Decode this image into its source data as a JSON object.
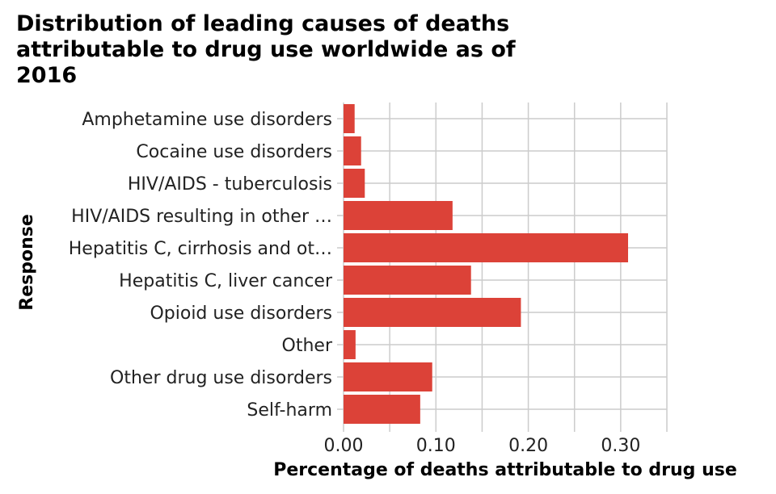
{
  "chart_data": {
    "type": "bar",
    "orientation": "horizontal",
    "title": "Distribution of leading causes of deaths attributable to drug use worldwide as of 2016",
    "xlabel": "Percentage of deaths attributable to drug use",
    "ylabel": "Response",
    "categories": [
      "Amphetamine use disorders",
      "Cocaine use disorders",
      "HIV/AIDS - tuberculosis",
      "HIV/AIDS resulting in other …",
      "Hepatitis C, cirrhosis and ot…",
      "Hepatitis C, liver cancer",
      "Opioid use disorders",
      "Other",
      "Other drug use disorders",
      "Self-harm"
    ],
    "values": [
      0.012,
      0.019,
      0.023,
      0.118,
      0.308,
      0.138,
      0.192,
      0.013,
      0.096,
      0.083
    ],
    "xlim": [
      0,
      0.35
    ],
    "xticks": [
      0.0,
      0.1,
      0.2,
      0.3
    ],
    "xtick_labels": [
      "0.00",
      "0.10",
      "0.20",
      "0.30"
    ],
    "grid": true,
    "bar_color": "#dc4238"
  }
}
